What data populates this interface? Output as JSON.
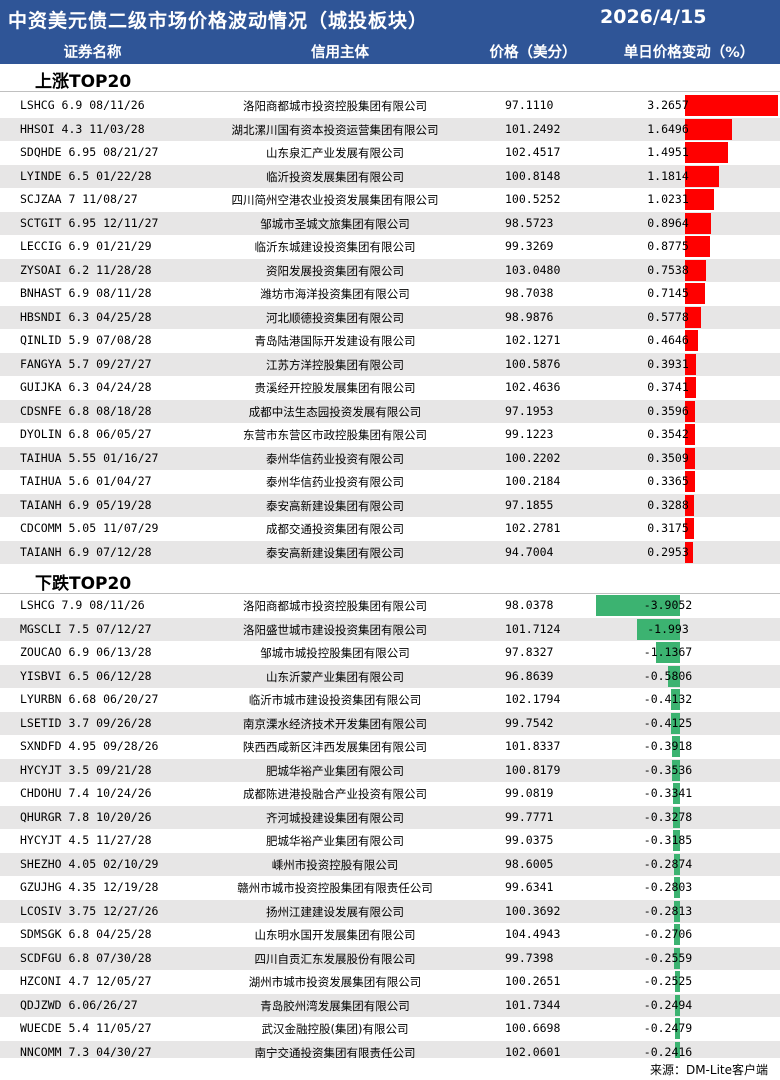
{
  "title": "中资美元债二级市场价格波动情况（城投板块）",
  "date": "2026/4/15",
  "headers": {
    "name": "证券名称",
    "issuer": "信用主体",
    "price": "价格（美分）",
    "change": "单日价格变动（%）"
  },
  "colors": {
    "header_bg": "#2f5597",
    "up": "#ff0000",
    "down": "#3cb371",
    "alt_row": "#e7e6e6"
  },
  "sections": [
    {
      "label": "上涨TOP20",
      "rows": [
        {
          "name": "LSHCG 6.9 08/11/26",
          "issuer": "洛阳商都城市投资控股集团有限公司",
          "price": "97.1110",
          "change": "3.2657"
        },
        {
          "name": "HHSOI 4.3 11/03/28",
          "issuer": "湖北漯川国有资本投资运营集团有限公司",
          "price": "101.2492",
          "change": "1.6496"
        },
        {
          "name": "SDQHDE 6.95 08/21/27",
          "issuer": "山东泉汇产业发展有限公司",
          "price": "102.4517",
          "change": "1.4951"
        },
        {
          "name": "LYINDE 6.5 01/22/28",
          "issuer": "临沂投资发展集团有限公司",
          "price": "100.8148",
          "change": "1.1814"
        },
        {
          "name": "SCJZAA 7 11/08/27",
          "issuer": "四川简州空港农业投资发展集团有限公司",
          "price": "100.5252",
          "change": "1.0231"
        },
        {
          "name": "SCTGIT 6.95 12/11/27",
          "issuer": "邹城市圣城文旅集团有限公司",
          "price": "98.5723",
          "change": "0.8964"
        },
        {
          "name": "LECCIG 6.9 01/21/29",
          "issuer": "临沂东城建设投资集团有限公司",
          "price": "99.3269",
          "change": "0.8775"
        },
        {
          "name": "ZYSOAI 6.2 11/28/28",
          "issuer": "资阳发展投资集团有限公司",
          "price": "103.0480",
          "change": "0.7538"
        },
        {
          "name": "BNHAST 6.9 08/11/28",
          "issuer": "潍坊市海洋投资集团有限公司",
          "price": "98.7038",
          "change": "0.7145"
        },
        {
          "name": "HBSNDI 6.3 04/25/28",
          "issuer": "河北顺德投资集团有限公司",
          "price": "98.9876",
          "change": "0.5778"
        },
        {
          "name": "QINLID 5.9 07/08/28",
          "issuer": "青岛陆港国际开发建设有限公司",
          "price": "102.1271",
          "change": "0.4646"
        },
        {
          "name": "FANGYA 5.7 09/27/27",
          "issuer": "江苏方洋控股集团有限公司",
          "price": "100.5876",
          "change": "0.3931"
        },
        {
          "name": "GUIJKA 6.3 04/24/28",
          "issuer": "贵溪经开控股发展集团有限公司",
          "price": "102.4636",
          "change": "0.3741"
        },
        {
          "name": "CDSNFE 6.8 08/18/28",
          "issuer": "成都中法生态园投资发展有限公司",
          "price": "97.1953",
          "change": "0.3596"
        },
        {
          "name": "DYOLIN 6.8 06/05/27",
          "issuer": "东营市东营区市政控股集团有限公司",
          "price": "99.1223",
          "change": "0.3542"
        },
        {
          "name": "TAIHUA 5.55 01/16/27",
          "issuer": "泰州华信药业投资有限公司",
          "price": "100.2202",
          "change": "0.3509"
        },
        {
          "name": "TAIHUA 5.6 01/04/27",
          "issuer": "泰州华信药业投资有限公司",
          "price": "100.2184",
          "change": "0.3365"
        },
        {
          "name": "TAIANH 6.9 05/19/28",
          "issuer": "泰安高新建设集团有限公司",
          "price": "97.1855",
          "change": "0.3288"
        },
        {
          "name": "CDCOMM 5.05 11/07/29",
          "issuer": "成都交通投资集团有限公司",
          "price": "102.2781",
          "change": "0.3175"
        },
        {
          "name": "TAIANH 6.9 07/12/28",
          "issuer": "泰安高新建设集团有限公司",
          "price": "94.7004",
          "change": "0.2953"
        }
      ]
    },
    {
      "label": "下跌TOP20",
      "rows": [
        {
          "name": "LSHCG 7.9 08/11/26",
          "issuer": "洛阳商都城市投资控股集团有限公司",
          "price": "98.0378",
          "change": "-3.9052"
        },
        {
          "name": "MGSCLI 7.5 07/12/27",
          "issuer": "洛阳盛世城市建设投资集团有限公司",
          "price": "101.7124",
          "change": "-1.993"
        },
        {
          "name": "ZOUCAO 6.9 06/13/28",
          "issuer": "邹城市城投控股集团有限公司",
          "price": "97.8327",
          "change": "-1.1367"
        },
        {
          "name": "YISBVI 6.5 06/12/28",
          "issuer": "山东沂蒙产业集团有限公司",
          "price": "96.8639",
          "change": "-0.5806"
        },
        {
          "name": "LYURBN 6.68 06/20/27",
          "issuer": "临沂市城市建设投资集团有限公司",
          "price": "102.1794",
          "change": "-0.4132"
        },
        {
          "name": "LSETID 3.7 09/26/28",
          "issuer": "南京溧水经济技术开发集团有限公司",
          "price": "99.7542",
          "change": "-0.4125"
        },
        {
          "name": "SXNDFD 4.95 09/28/26",
          "issuer": "陕西西咸新区沣西发展集团有限公司",
          "price": "101.8337",
          "change": "-0.3918"
        },
        {
          "name": "HYCYJT 3.5 09/21/28",
          "issuer": "肥城华裕产业集团有限公司",
          "price": "100.8179",
          "change": "-0.3536"
        },
        {
          "name": "CHDOHU 7.4 10/24/26",
          "issuer": "成都陈进港投融合产业投资有限公司",
          "price": "99.0819",
          "change": "-0.3341"
        },
        {
          "name": "QHURGR 7.8 10/20/26",
          "issuer": "齐河城投建设集团有限公司",
          "price": "99.7771",
          "change": "-0.3278"
        },
        {
          "name": "HYCYJT 4.5 11/27/28",
          "issuer": "肥城华裕产业集团有限公司",
          "price": "99.0375",
          "change": "-0.3185"
        },
        {
          "name": "SHEZHO 4.05 02/10/29",
          "issuer": "嵊州市投资控股有限公司",
          "price": "98.6005",
          "change": "-0.2874"
        },
        {
          "name": "GZUJHG 4.35 12/19/28",
          "issuer": "赣州市城市投资控股集团有限责任公司",
          "price": "99.6341",
          "change": "-0.2803"
        },
        {
          "name": "LCOSIV 3.75 12/27/26",
          "issuer": "扬州江建建设发展有限公司",
          "price": "100.3692",
          "change": "-0.2813"
        },
        {
          "name": "SDMSGK 6.8 04/25/28",
          "issuer": "山东明水国开发展集团有限公司",
          "price": "104.4943",
          "change": "-0.2706"
        },
        {
          "name": "SCDFGU 6.8 07/30/28",
          "issuer": "四川自贡汇东发展股份有限公司",
          "price": "99.7398",
          "change": "-0.2559"
        },
        {
          "name": "HZCONI 4.7 12/05/27",
          "issuer": "湖州市城市投资发展集团有限公司",
          "price": "100.2651",
          "change": "-0.2525"
        },
        {
          "name": "QDJZWD 6.06/26/27",
          "issuer": "青岛胶州湾发展集团有限公司",
          "price": "101.7344",
          "price_note": "",
          "change": "-0.2494"
        },
        {
          "name": "WUECDE 5.4 11/05/27",
          "issuer": "武汉金融控股(集团)有限公司",
          "price": "100.6698",
          "change": "-0.2479"
        },
        {
          "name": "NNCOMM 7.3 04/30/27",
          "issuer": "南宁交通投资集团有限责任公司",
          "price": "102.0601",
          "change": "-0.2416"
        }
      ]
    }
  ],
  "footer": "来源：DM-Lite客户端"
}
